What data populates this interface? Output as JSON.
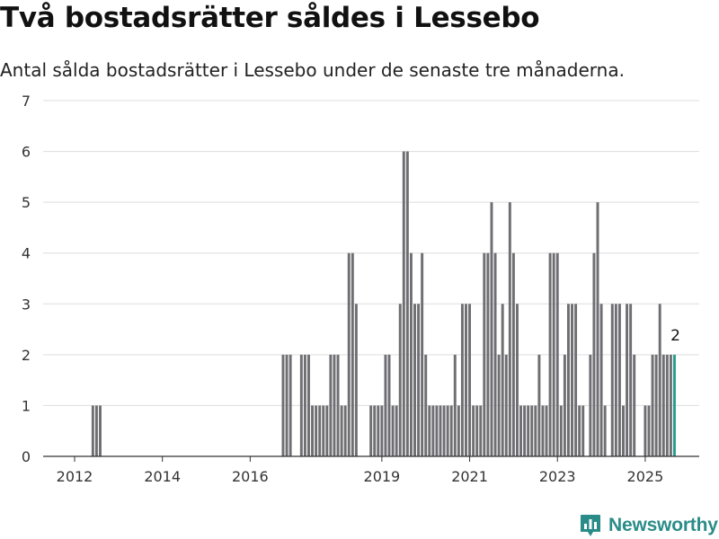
{
  "header": {
    "title": "Två bostadsrätter såldes i Lessebo",
    "subtitle": "Antal sålda bostadsrätter i Lessebo under de senaste tre månaderna."
  },
  "brand": {
    "name": "Newsworthy",
    "icon": "newsworthy-logo-icon",
    "color": "#2a8c88"
  },
  "chart_data": {
    "type": "bar",
    "title": "Två bostadsrätter såldes i Lessebo",
    "subtitle": "Antal sålda bostadsrätter i Lessebo under de senaste tre månaderna.",
    "xlabel": "",
    "ylabel": "",
    "ylim": [
      0,
      7
    ],
    "yticks": [
      0,
      1,
      2,
      3,
      4,
      5,
      6,
      7
    ],
    "xticks": [
      {
        "label": "2012",
        "month": "2012-01"
      },
      {
        "label": "2014",
        "month": "2014-01"
      },
      {
        "label": "2016",
        "month": "2016-01"
      },
      {
        "label": "2019",
        "month": "2019-01"
      },
      {
        "label": "2021",
        "month": "2021-01"
      },
      {
        "label": "2023",
        "month": "2023-01"
      },
      {
        "label": "2025",
        "month": "2025-01"
      }
    ],
    "grid": true,
    "bar_color": "#6e6e73",
    "highlight_color": "#2a9d8f",
    "annotation": "2",
    "series": [
      {
        "values": [
          {
            "month": "2012-06",
            "value": 1
          },
          {
            "month": "2012-07",
            "value": 1
          },
          {
            "month": "2012-08",
            "value": 1
          },
          {
            "month": "2016-10",
            "value": 2
          },
          {
            "month": "2016-11",
            "value": 2
          },
          {
            "month": "2016-12",
            "value": 2
          },
          {
            "month": "2017-03",
            "value": 2
          },
          {
            "month": "2017-04",
            "value": 2
          },
          {
            "month": "2017-05",
            "value": 2
          },
          {
            "month": "2017-06",
            "value": 1
          },
          {
            "month": "2017-07",
            "value": 1
          },
          {
            "month": "2017-08",
            "value": 1
          },
          {
            "month": "2017-09",
            "value": 1
          },
          {
            "month": "2017-10",
            "value": 1
          },
          {
            "month": "2017-11",
            "value": 2
          },
          {
            "month": "2017-12",
            "value": 2
          },
          {
            "month": "2018-01",
            "value": 2
          },
          {
            "month": "2018-02",
            "value": 1
          },
          {
            "month": "2018-03",
            "value": 1
          },
          {
            "month": "2018-04",
            "value": 4
          },
          {
            "month": "2018-05",
            "value": 4
          },
          {
            "month": "2018-06",
            "value": 3
          },
          {
            "month": "2018-10",
            "value": 1
          },
          {
            "month": "2018-11",
            "value": 1
          },
          {
            "month": "2018-12",
            "value": 1
          },
          {
            "month": "2019-01",
            "value": 1
          },
          {
            "month": "2019-02",
            "value": 2
          },
          {
            "month": "2019-03",
            "value": 2
          },
          {
            "month": "2019-04",
            "value": 1
          },
          {
            "month": "2019-05",
            "value": 1
          },
          {
            "month": "2019-06",
            "value": 3
          },
          {
            "month": "2019-07",
            "value": 6
          },
          {
            "month": "2019-08",
            "value": 6
          },
          {
            "month": "2019-09",
            "value": 4
          },
          {
            "month": "2019-10",
            "value": 3
          },
          {
            "month": "2019-11",
            "value": 3
          },
          {
            "month": "2019-12",
            "value": 4
          },
          {
            "month": "2020-01",
            "value": 2
          },
          {
            "month": "2020-02",
            "value": 1
          },
          {
            "month": "2020-03",
            "value": 1
          },
          {
            "month": "2020-04",
            "value": 1
          },
          {
            "month": "2020-05",
            "value": 1
          },
          {
            "month": "2020-06",
            "value": 1
          },
          {
            "month": "2020-07",
            "value": 1
          },
          {
            "month": "2020-08",
            "value": 1
          },
          {
            "month": "2020-09",
            "value": 2
          },
          {
            "month": "2020-10",
            "value": 1
          },
          {
            "month": "2020-11",
            "value": 3
          },
          {
            "month": "2020-12",
            "value": 3
          },
          {
            "month": "2021-01",
            "value": 3
          },
          {
            "month": "2021-02",
            "value": 1
          },
          {
            "month": "2021-03",
            "value": 1
          },
          {
            "month": "2021-04",
            "value": 1
          },
          {
            "month": "2021-05",
            "value": 4
          },
          {
            "month": "2021-06",
            "value": 4
          },
          {
            "month": "2021-07",
            "value": 5
          },
          {
            "month": "2021-08",
            "value": 4
          },
          {
            "month": "2021-09",
            "value": 2
          },
          {
            "month": "2021-10",
            "value": 3
          },
          {
            "month": "2021-11",
            "value": 2
          },
          {
            "month": "2021-12",
            "value": 5
          },
          {
            "month": "2022-01",
            "value": 4
          },
          {
            "month": "2022-02",
            "value": 3
          },
          {
            "month": "2022-03",
            "value": 1
          },
          {
            "month": "2022-04",
            "value": 1
          },
          {
            "month": "2022-05",
            "value": 1
          },
          {
            "month": "2022-06",
            "value": 1
          },
          {
            "month": "2022-07",
            "value": 1
          },
          {
            "month": "2022-08",
            "value": 2
          },
          {
            "month": "2022-09",
            "value": 1
          },
          {
            "month": "2022-10",
            "value": 1
          },
          {
            "month": "2022-11",
            "value": 4
          },
          {
            "month": "2022-12",
            "value": 4
          },
          {
            "month": "2023-01",
            "value": 4
          },
          {
            "month": "2023-02",
            "value": 1
          },
          {
            "month": "2023-03",
            "value": 2
          },
          {
            "month": "2023-04",
            "value": 3
          },
          {
            "month": "2023-05",
            "value": 3
          },
          {
            "month": "2023-06",
            "value": 3
          },
          {
            "month": "2023-07",
            "value": 1
          },
          {
            "month": "2023-08",
            "value": 1
          },
          {
            "month": "2023-10",
            "value": 2
          },
          {
            "month": "2023-11",
            "value": 4
          },
          {
            "month": "2023-12",
            "value": 5
          },
          {
            "month": "2024-01",
            "value": 3
          },
          {
            "month": "2024-02",
            "value": 1
          },
          {
            "month": "2024-04",
            "value": 3
          },
          {
            "month": "2024-05",
            "value": 3
          },
          {
            "month": "2024-06",
            "value": 3
          },
          {
            "month": "2024-07",
            "value": 1
          },
          {
            "month": "2024-08",
            "value": 3
          },
          {
            "month": "2024-09",
            "value": 3
          },
          {
            "month": "2024-10",
            "value": 2
          },
          {
            "month": "2025-01",
            "value": 1
          },
          {
            "month": "2025-02",
            "value": 1
          },
          {
            "month": "2025-03",
            "value": 2
          },
          {
            "month": "2025-04",
            "value": 2
          },
          {
            "month": "2025-05",
            "value": 3
          },
          {
            "month": "2025-06",
            "value": 2
          },
          {
            "month": "2025-07",
            "value": 2
          },
          {
            "month": "2025-08",
            "value": 2
          },
          {
            "month": "2025-09",
            "value": 2,
            "highlight": true
          }
        ]
      }
    ]
  }
}
